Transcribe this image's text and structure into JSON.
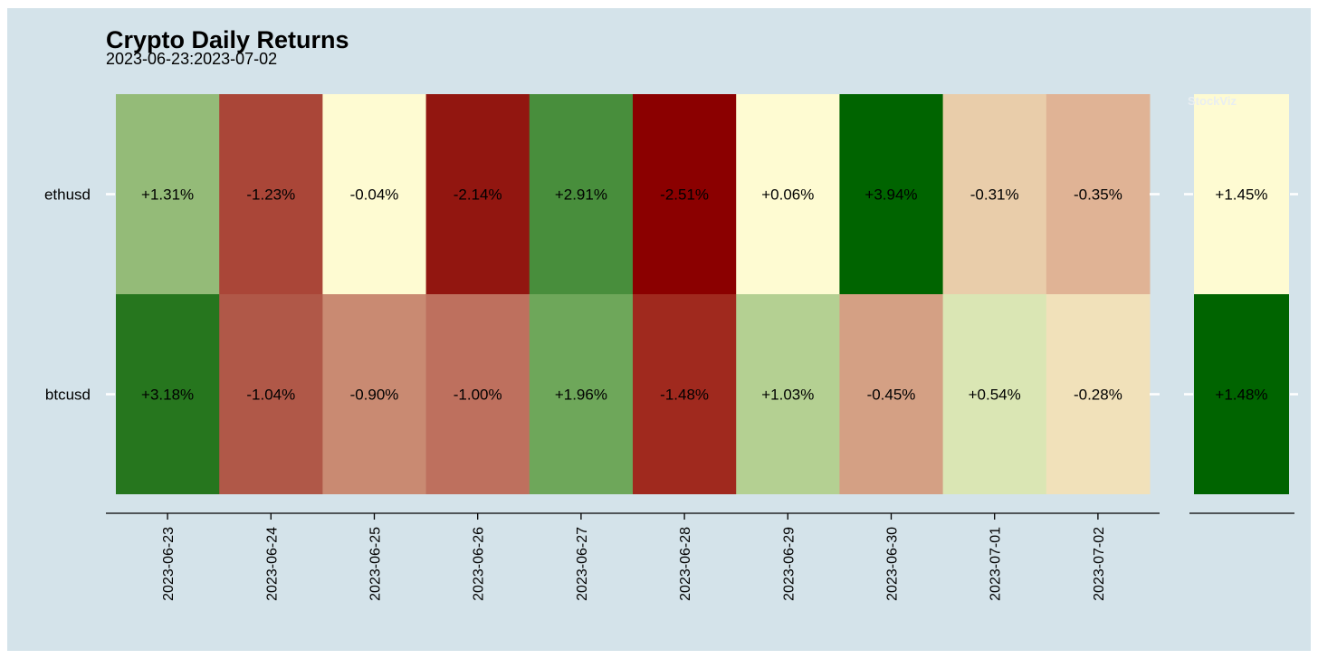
{
  "chart_data": {
    "type": "heatmap",
    "title": "Crypto Daily Returns",
    "subtitle": "2023-06-23:2023-07-02",
    "watermark": "StockViz",
    "rows": [
      "ethusd",
      "btcusd"
    ],
    "columns": [
      "2023-06-23",
      "2023-06-24",
      "2023-06-25",
      "2023-06-26",
      "2023-06-27",
      "2023-06-28",
      "2023-06-29",
      "2023-06-30",
      "2023-07-01",
      "2023-07-02"
    ],
    "values": {
      "ethusd": [
        1.31,
        -1.23,
        -0.04,
        -2.14,
        2.91,
        -2.51,
        0.06,
        3.94,
        -0.31,
        -0.35
      ],
      "btcusd": [
        3.18,
        -1.04,
        -0.9,
        -1.0,
        1.96,
        -1.48,
        1.03,
        -0.45,
        0.54,
        -0.28
      ]
    },
    "labels": {
      "ethusd": [
        "+1.31%",
        "-1.23%",
        "-0.04%",
        "-2.14%",
        "+2.91%",
        "-2.51%",
        "+0.06%",
        "+3.94%",
        "-0.31%",
        "-0.35%"
      ],
      "btcusd": [
        "+3.18%",
        "-1.04%",
        "-0.90%",
        "-1.00%",
        "+1.96%",
        "-1.48%",
        "+1.03%",
        "-0.45%",
        "+0.54%",
        "-0.28%"
      ]
    },
    "colors": {
      "ethusd": [
        "#94bb78",
        "#aa4638",
        "#fefbd2",
        "#921610",
        "#488e3c",
        "#8b0000",
        "#fefbd2",
        "#006400",
        "#e9cdaa",
        "#e0b395"
      ],
      "btcusd": [
        "#26761e",
        "#b05848",
        "#c98a72",
        "#be705e",
        "#6ea75a",
        "#a0291e",
        "#b4d092",
        "#d4a084",
        "#dae6b4",
        "#f1e1ba"
      ]
    },
    "summary": {
      "values": [
        1.45,
        1.48
      ],
      "labels": [
        "+1.45%",
        "+1.48%"
      ],
      "colors": [
        "#fefbd2",
        "#006400"
      ]
    }
  }
}
